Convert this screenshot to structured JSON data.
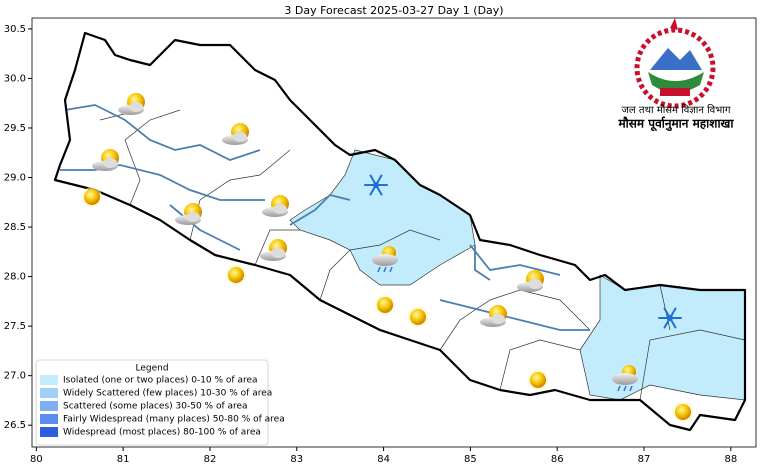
{
  "map": {
    "title": "3 Day Forecast 2025-03-27 Day 1 (Day)",
    "xlim": [
      79.95,
      88.29
    ],
    "ylim": [
      26.28,
      30.61
    ],
    "xticks": [
      80,
      81,
      82,
      83,
      84,
      85,
      86,
      87,
      88
    ],
    "yticks": [
      26.5,
      {
        "value": 27,
        "label": "27.0"
      },
      27.5,
      {
        "value": 28,
        "label": "28.0"
      },
      28.5,
      {
        "value": 29,
        "label": "29.0"
      },
      29.5,
      {
        "value": 30,
        "label": "30.0"
      },
      30.5
    ],
    "legend": {
      "title": "Legend",
      "entries": [
        {
          "label": "Isolated (one or two places)  0-10 % of area",
          "color": "#c2ecfb"
        },
        {
          "label": "Widely Scattered (few places) 10-30 % of area",
          "color": "#a0d0f6"
        },
        {
          "label": "Scattered (some places) 30-50  % of area",
          "color": "#80aef2"
        },
        {
          "label": "Fairly Widespread (many places) 50-80 % of area",
          "color": "#5a8cf0"
        },
        {
          "label": "Widespread (most places) 80-100 % of area",
          "color": "#2f5fe0"
        }
      ]
    }
  },
  "header": {
    "department": "जल तथा मौसम विज्ञान विभाग",
    "division": "मौसम पूर्वानुमान महाशाखा"
  }
}
